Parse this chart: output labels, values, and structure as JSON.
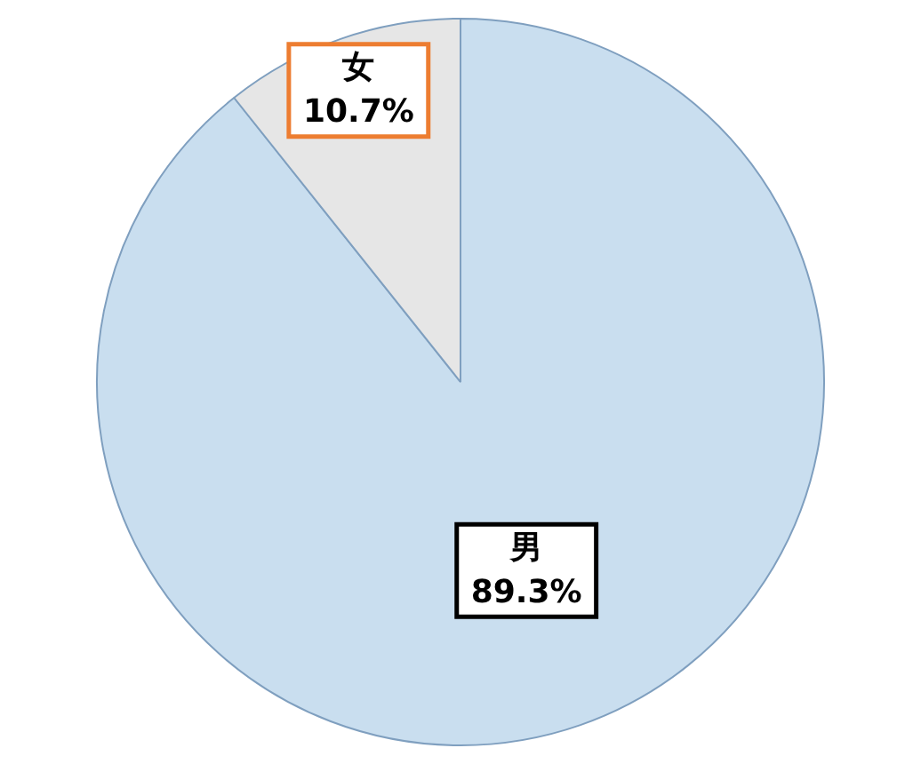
{
  "chart_data": {
    "type": "pie",
    "categories": [
      "男",
      "女"
    ],
    "values": [
      89.3,
      10.7
    ],
    "colors": [
      "#c9deef",
      "#e6e6e6"
    ],
    "value_labels": [
      "89.3%",
      "10.7%"
    ],
    "legend": false
  }
}
